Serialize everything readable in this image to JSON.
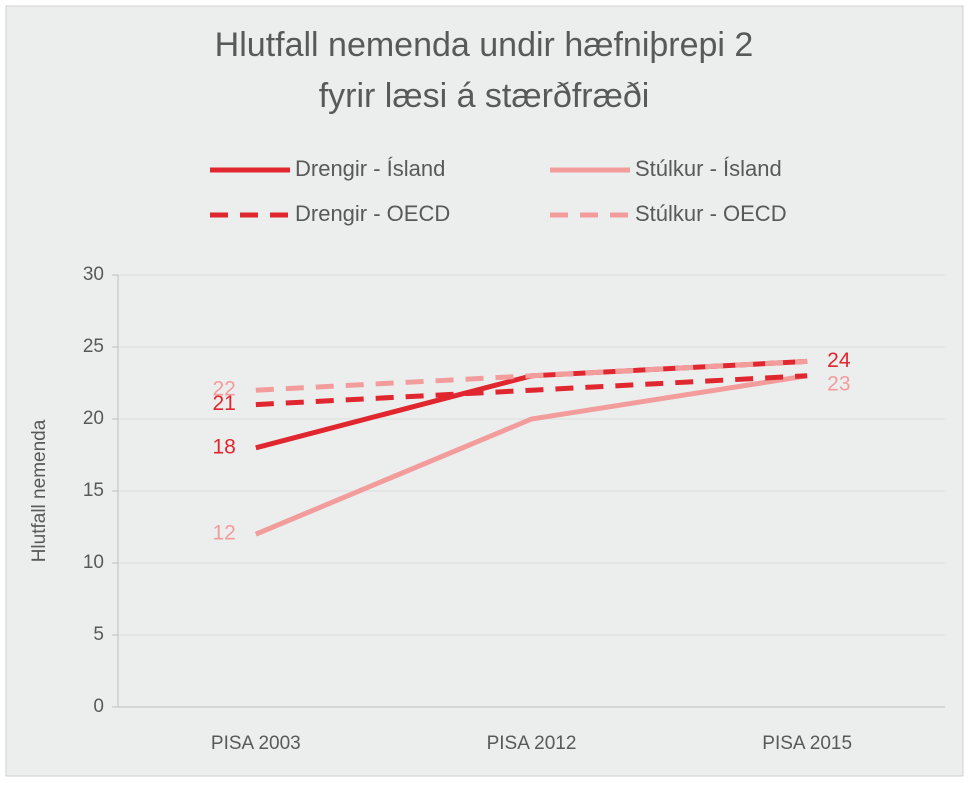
{
  "chart_data": {
    "type": "line",
    "title": [
      "Hlutfall nemenda undir hæfniþrepi 2",
      "fyrir læsi á stærðfræði"
    ],
    "ylabel": "Hlutfall nemenda",
    "categories": [
      "PISA 2003",
      "PISA 2012",
      "PISA 2015"
    ],
    "series": [
      {
        "name": "Drengir - Ísland",
        "color": "#e0262e",
        "linestyle": "solid",
        "values": [
          18,
          23,
          24
        ],
        "value_labels": [
          "18",
          null,
          "24"
        ]
      },
      {
        "name": "Stúlkur - Ísland",
        "color": "#f29c9c",
        "linestyle": "solid",
        "values": [
          12,
          20,
          23
        ],
        "value_labels": [
          "12",
          null,
          "23"
        ]
      },
      {
        "name": "Drengir - OECD",
        "color": "#e0262e",
        "linestyle": "dashed",
        "values": [
          21,
          22,
          23
        ],
        "value_labels": [
          "21",
          null,
          null
        ]
      },
      {
        "name": "Stúlkur - OECD",
        "color": "#f29c9c",
        "linestyle": "dashed",
        "values": [
          22,
          23,
          24
        ],
        "value_labels": [
          "22",
          null,
          null
        ]
      }
    ],
    "ylim": [
      0,
      30
    ],
    "yticks": [
      0,
      5,
      10,
      15,
      20,
      25,
      30
    ],
    "grid": true
  }
}
